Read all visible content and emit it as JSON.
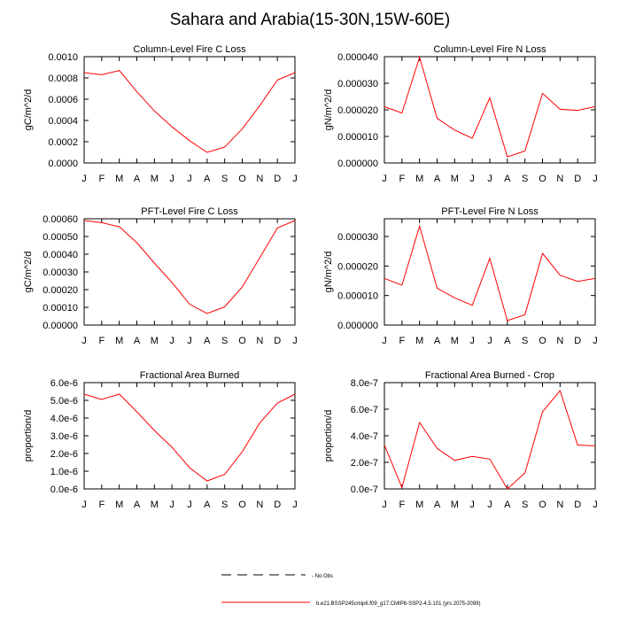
{
  "title": "Sahara and Arabia(15-30N,15W-60E)",
  "colors": {
    "line": "#ff0000",
    "axis": "#000000"
  },
  "legend": {
    "obs_label": "- No Obs",
    "model_label": "b.e21.BSSP245cmip6.f09_g17.CMIP6-SSP2-4.5.101 (yrs 2075-2099)"
  },
  "chart_data": [
    {
      "type": "line",
      "title": "Column-Level Fire C Loss",
      "ylabel": "gC/m^2/d",
      "categories": [
        "J",
        "F",
        "M",
        "A",
        "M",
        "J",
        "J",
        "A",
        "S",
        "O",
        "N",
        "D",
        "J"
      ],
      "ylim": [
        0,
        0.001
      ],
      "yticks": [
        "0.0000",
        "0.0002",
        "0.0004",
        "0.0006",
        "0.0008",
        "0.0010"
      ],
      "values": [
        0.00085,
        0.00083,
        0.00087,
        0.00067,
        0.00049,
        0.00034,
        0.00021,
        0.0001,
        0.00015,
        0.00032,
        0.00054,
        0.00078,
        0.00085
      ]
    },
    {
      "type": "line",
      "title": "Column-Level Fire N Loss",
      "ylabel": "gN/m^2/d",
      "categories": [
        "J",
        "F",
        "M",
        "A",
        "M",
        "J",
        "J",
        "A",
        "S",
        "O",
        "N",
        "D",
        "J"
      ],
      "ylim": [
        0,
        4e-05
      ],
      "yticks": [
        "0.000000",
        "0.000010",
        "0.000020",
        "0.000030",
        "0.000040"
      ],
      "values": [
        2.12e-05,
        1.88e-05,
        3.98e-05,
        1.68e-05,
        1.24e-05,
        9.3e-06,
        2.45e-05,
        2.3e-06,
        4.5e-06,
        2.62e-05,
        2.02e-05,
        1.98e-05,
        2.12e-05
      ]
    },
    {
      "type": "line",
      "title": "PFT-Level Fire C Loss",
      "ylabel": "gC/m^2/d",
      "categories": [
        "J",
        "F",
        "M",
        "A",
        "M",
        "J",
        "J",
        "A",
        "S",
        "O",
        "N",
        "D",
        "J"
      ],
      "ylim": [
        0,
        0.0006
      ],
      "yticks": [
        "0.00000",
        "0.00010",
        "0.00020",
        "0.00030",
        "0.00040",
        "0.00050",
        "0.00060"
      ],
      "values": [
        0.00059,
        0.000578,
        0.000555,
        0.000465,
        0.00035,
        0.00024,
        0.000118,
        6.5e-05,
        0.000103,
        0.000215,
        0.00038,
        0.000548,
        0.00059
      ]
    },
    {
      "type": "line",
      "title": "PFT-Level Fire N Loss",
      "ylabel": "gN/m^2/d",
      "categories": [
        "J",
        "F",
        "M",
        "A",
        "M",
        "J",
        "J",
        "A",
        "S",
        "O",
        "N",
        "D",
        "J"
      ],
      "ylim": [
        0,
        3.6e-05
      ],
      "yticks": [
        "0.000000",
        "0.000010",
        "0.000020",
        "0.000030"
      ],
      "values": [
        1.58e-05,
        1.35e-05,
        3.35e-05,
        1.25e-05,
        9.2e-06,
        6.7e-06,
        2.26e-05,
        1.5e-06,
        3.5e-06,
        2.43e-05,
        1.69e-05,
        1.48e-05,
        1.58e-05
      ]
    },
    {
      "type": "line",
      "title": "Fractional Area Burned",
      "ylabel": "proportion/d",
      "categories": [
        "J",
        "F",
        "M",
        "A",
        "M",
        "J",
        "J",
        "A",
        "S",
        "O",
        "N",
        "D",
        "J"
      ],
      "ylim": [
        0,
        6e-06
      ],
      "yticks": [
        "0.0e-6",
        "1.0e-6",
        "2.0e-6",
        "3.0e-6",
        "4.0e-6",
        "5.0e-6",
        "6.0e-6"
      ],
      "values": [
        5.35e-06,
        5.05e-06,
        5.35e-06,
        4.35e-06,
        3.3e-06,
        2.35e-06,
        1.2e-06,
        4.5e-07,
        8.2e-07,
        2.1e-06,
        3.72e-06,
        4.85e-06,
        5.35e-06
      ]
    },
    {
      "type": "line",
      "title": "Fractional Area Burned - Crop",
      "ylabel": "proportion/d",
      "categories": [
        "J",
        "F",
        "M",
        "A",
        "M",
        "J",
        "J",
        "A",
        "S",
        "O",
        "N",
        "D",
        "J"
      ],
      "ylim": [
        0,
        8e-07
      ],
      "yticks": [
        "0.0e-7",
        "2.0e-7",
        "4.0e-7",
        "6.0e-7",
        "8.0e-7"
      ],
      "values": [
        3.3e-07,
        1e-08,
        5e-07,
        3.05e-07,
        2.15e-07,
        2.45e-07,
        2.25e-07,
        0.0,
        1.2e-07,
        5.8e-07,
        7.4e-07,
        3.3e-07,
        3.25e-07
      ]
    }
  ]
}
